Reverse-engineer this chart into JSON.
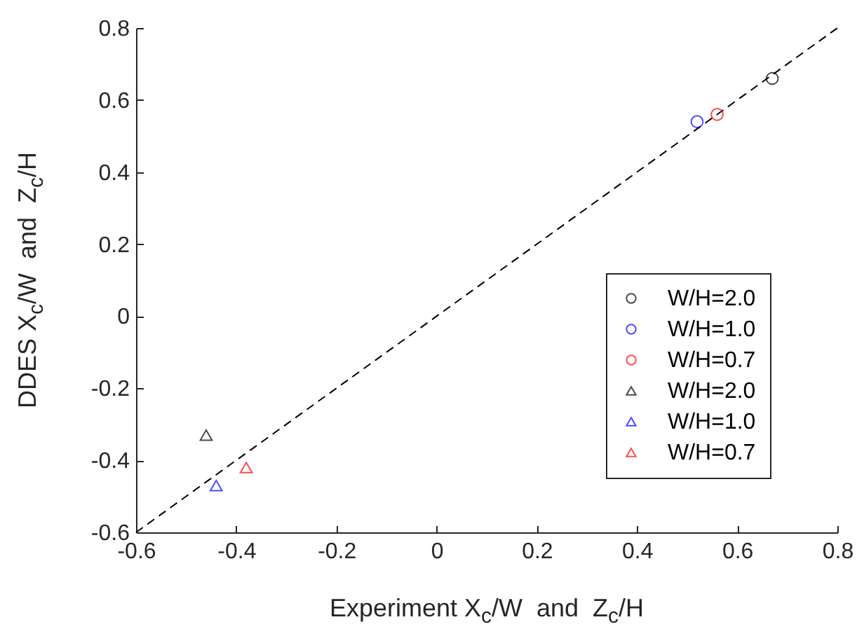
{
  "chart_data": {
    "type": "scatter",
    "xlabel": "Experiment X$_{c}$/W  and  Z$_{c}$/H",
    "ylabel": "DDES X$_{c}$/W  and  Z$_{c}$/H",
    "xlim": [
      -0.6,
      0.8
    ],
    "ylim": [
      -0.6,
      0.8
    ],
    "xticks": [
      -0.6,
      -0.4,
      -0.2,
      0,
      0.2,
      0.4,
      0.6,
      0.8
    ],
    "yticks": [
      -0.6,
      -0.4,
      -0.2,
      0,
      0.2,
      0.4,
      0.6,
      0.8
    ],
    "grid": false,
    "legend": "bottom right",
    "series": [
      {
        "name": "W/H=2.0",
        "color": "#000000",
        "marker": "circle",
        "x": [
          0.67
        ],
        "values": [
          0.66
        ]
      },
      {
        "name": "W/H=1.0",
        "color": "#0000ff",
        "marker": "circle",
        "x": [
          0.52
        ],
        "values": [
          0.54
        ]
      },
      {
        "name": "W/H=0.7",
        "color": "#ff0000",
        "marker": "circle",
        "x": [
          0.56
        ],
        "values": [
          0.56
        ]
      },
      {
        "name": "W/H=2.0",
        "color": "#000000",
        "marker": "triangle",
        "x": [
          -0.46
        ],
        "values": [
          -0.33
        ]
      },
      {
        "name": "W/H=1.0",
        "color": "#0000ff",
        "marker": "triangle",
        "x": [
          -0.44
        ],
        "values": [
          -0.47
        ]
      },
      {
        "name": "W/H=0.7",
        "color": "#ff0000",
        "marker": "triangle",
        "x": [
          -0.38
        ],
        "values": [
          -0.42
        ]
      },
      {
        "type": "line",
        "color": "#000000",
        "line_style": "dashed",
        "marker": "none",
        "x": [
          -0.6,
          0.8
        ],
        "values": [
          -0.6,
          0.8
        ]
      }
    ]
  }
}
